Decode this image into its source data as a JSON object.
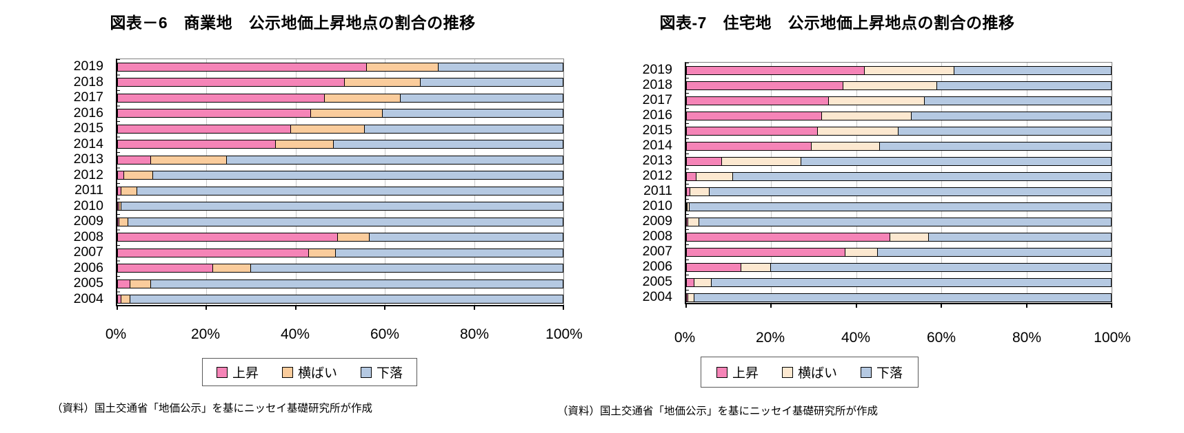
{
  "charts": [
    {
      "source": "（資料）国土交通省「地価公示」を基にニッセイ基礎研究所が作成"
    },
    {
      "source": "（資料）国土交通省「地価公示」を基にニッセイ基礎研究所が作成"
    }
  ],
  "chart_data": [
    {
      "type": "bar",
      "orientation": "horizontal-stacked",
      "title": "図表－6　商業地　公示地価上昇地点の割合の推移",
      "categories": [
        "2019",
        "2018",
        "2017",
        "2016",
        "2015",
        "2014",
        "2013",
        "2012",
        "2011",
        "2010",
        "2009",
        "2008",
        "2007",
        "2006",
        "2005",
        "2004"
      ],
      "series": [
        {
          "name": "上昇",
          "color": "#F584B7",
          "values": [
            56,
            51,
            46.5,
            43.5,
            39,
            35.5,
            7.5,
            1.5,
            1,
            0.4,
            0.5,
            49.5,
            43,
            21.5,
            3,
            1
          ]
        },
        {
          "name": "横ばい",
          "color": "#FACC9C",
          "values": [
            16,
            17,
            17,
            16,
            16.5,
            13,
            17,
            6.5,
            3.5,
            0.6,
            2,
            7,
            6,
            8.5,
            4.5,
            2
          ]
        },
        {
          "name": "下落",
          "color": "#B5C9E2",
          "values": [
            28,
            32,
            36.5,
            40.5,
            44.5,
            51.5,
            75.5,
            92,
            95.5,
            99,
            97.5,
            43.5,
            51,
            70,
            92.5,
            97
          ]
        }
      ],
      "xlim": [
        0,
        100
      ],
      "x_tick_labels": [
        "0%",
        "20%",
        "40%",
        "60%",
        "80%",
        "100%"
      ],
      "gridlines_pct": [
        20,
        40,
        60,
        80
      ],
      "legend_position": "bottom",
      "unit": "percent"
    },
    {
      "type": "bar",
      "orientation": "horizontal-stacked",
      "title": "図表-7　住宅地　公示地価上昇地点の割合の推移",
      "categories": [
        "2019",
        "2018",
        "2017",
        "2016",
        "2015",
        "2014",
        "2013",
        "2012",
        "2011",
        "2010",
        "2009",
        "2008",
        "2007",
        "2006",
        "2005",
        "2004"
      ],
      "series": [
        {
          "name": "上昇",
          "color": "#F584B7",
          "values": [
            42,
            37,
            33.5,
            32,
            31,
            29.5,
            8.5,
            2.5,
            1,
            0.3,
            0.5,
            48,
            37.5,
            13,
            2,
            0.5
          ]
        },
        {
          "name": "横ばい",
          "color": "#FCE8D0",
          "values": [
            21,
            22,
            22.5,
            21,
            19,
            16,
            18.5,
            8.5,
            4.5,
            0.5,
            2.5,
            9,
            7.5,
            7,
            4,
            1.5
          ]
        },
        {
          "name": "下落",
          "color": "#B5C9E2",
          "values": [
            37,
            41,
            44,
            47,
            50,
            54.5,
            73,
            89,
            94.5,
            99.2,
            97,
            43,
            55,
            80,
            94,
            98
          ]
        }
      ],
      "xlim": [
        0,
        100
      ],
      "x_tick_labels": [
        "0%",
        "20%",
        "40%",
        "60%",
        "80%",
        "100%"
      ],
      "gridlines_pct": [
        20,
        40,
        60,
        80
      ],
      "legend_position": "bottom",
      "unit": "percent"
    }
  ],
  "segment_semantic_names": [
    "rise",
    "flat",
    "fall"
  ]
}
